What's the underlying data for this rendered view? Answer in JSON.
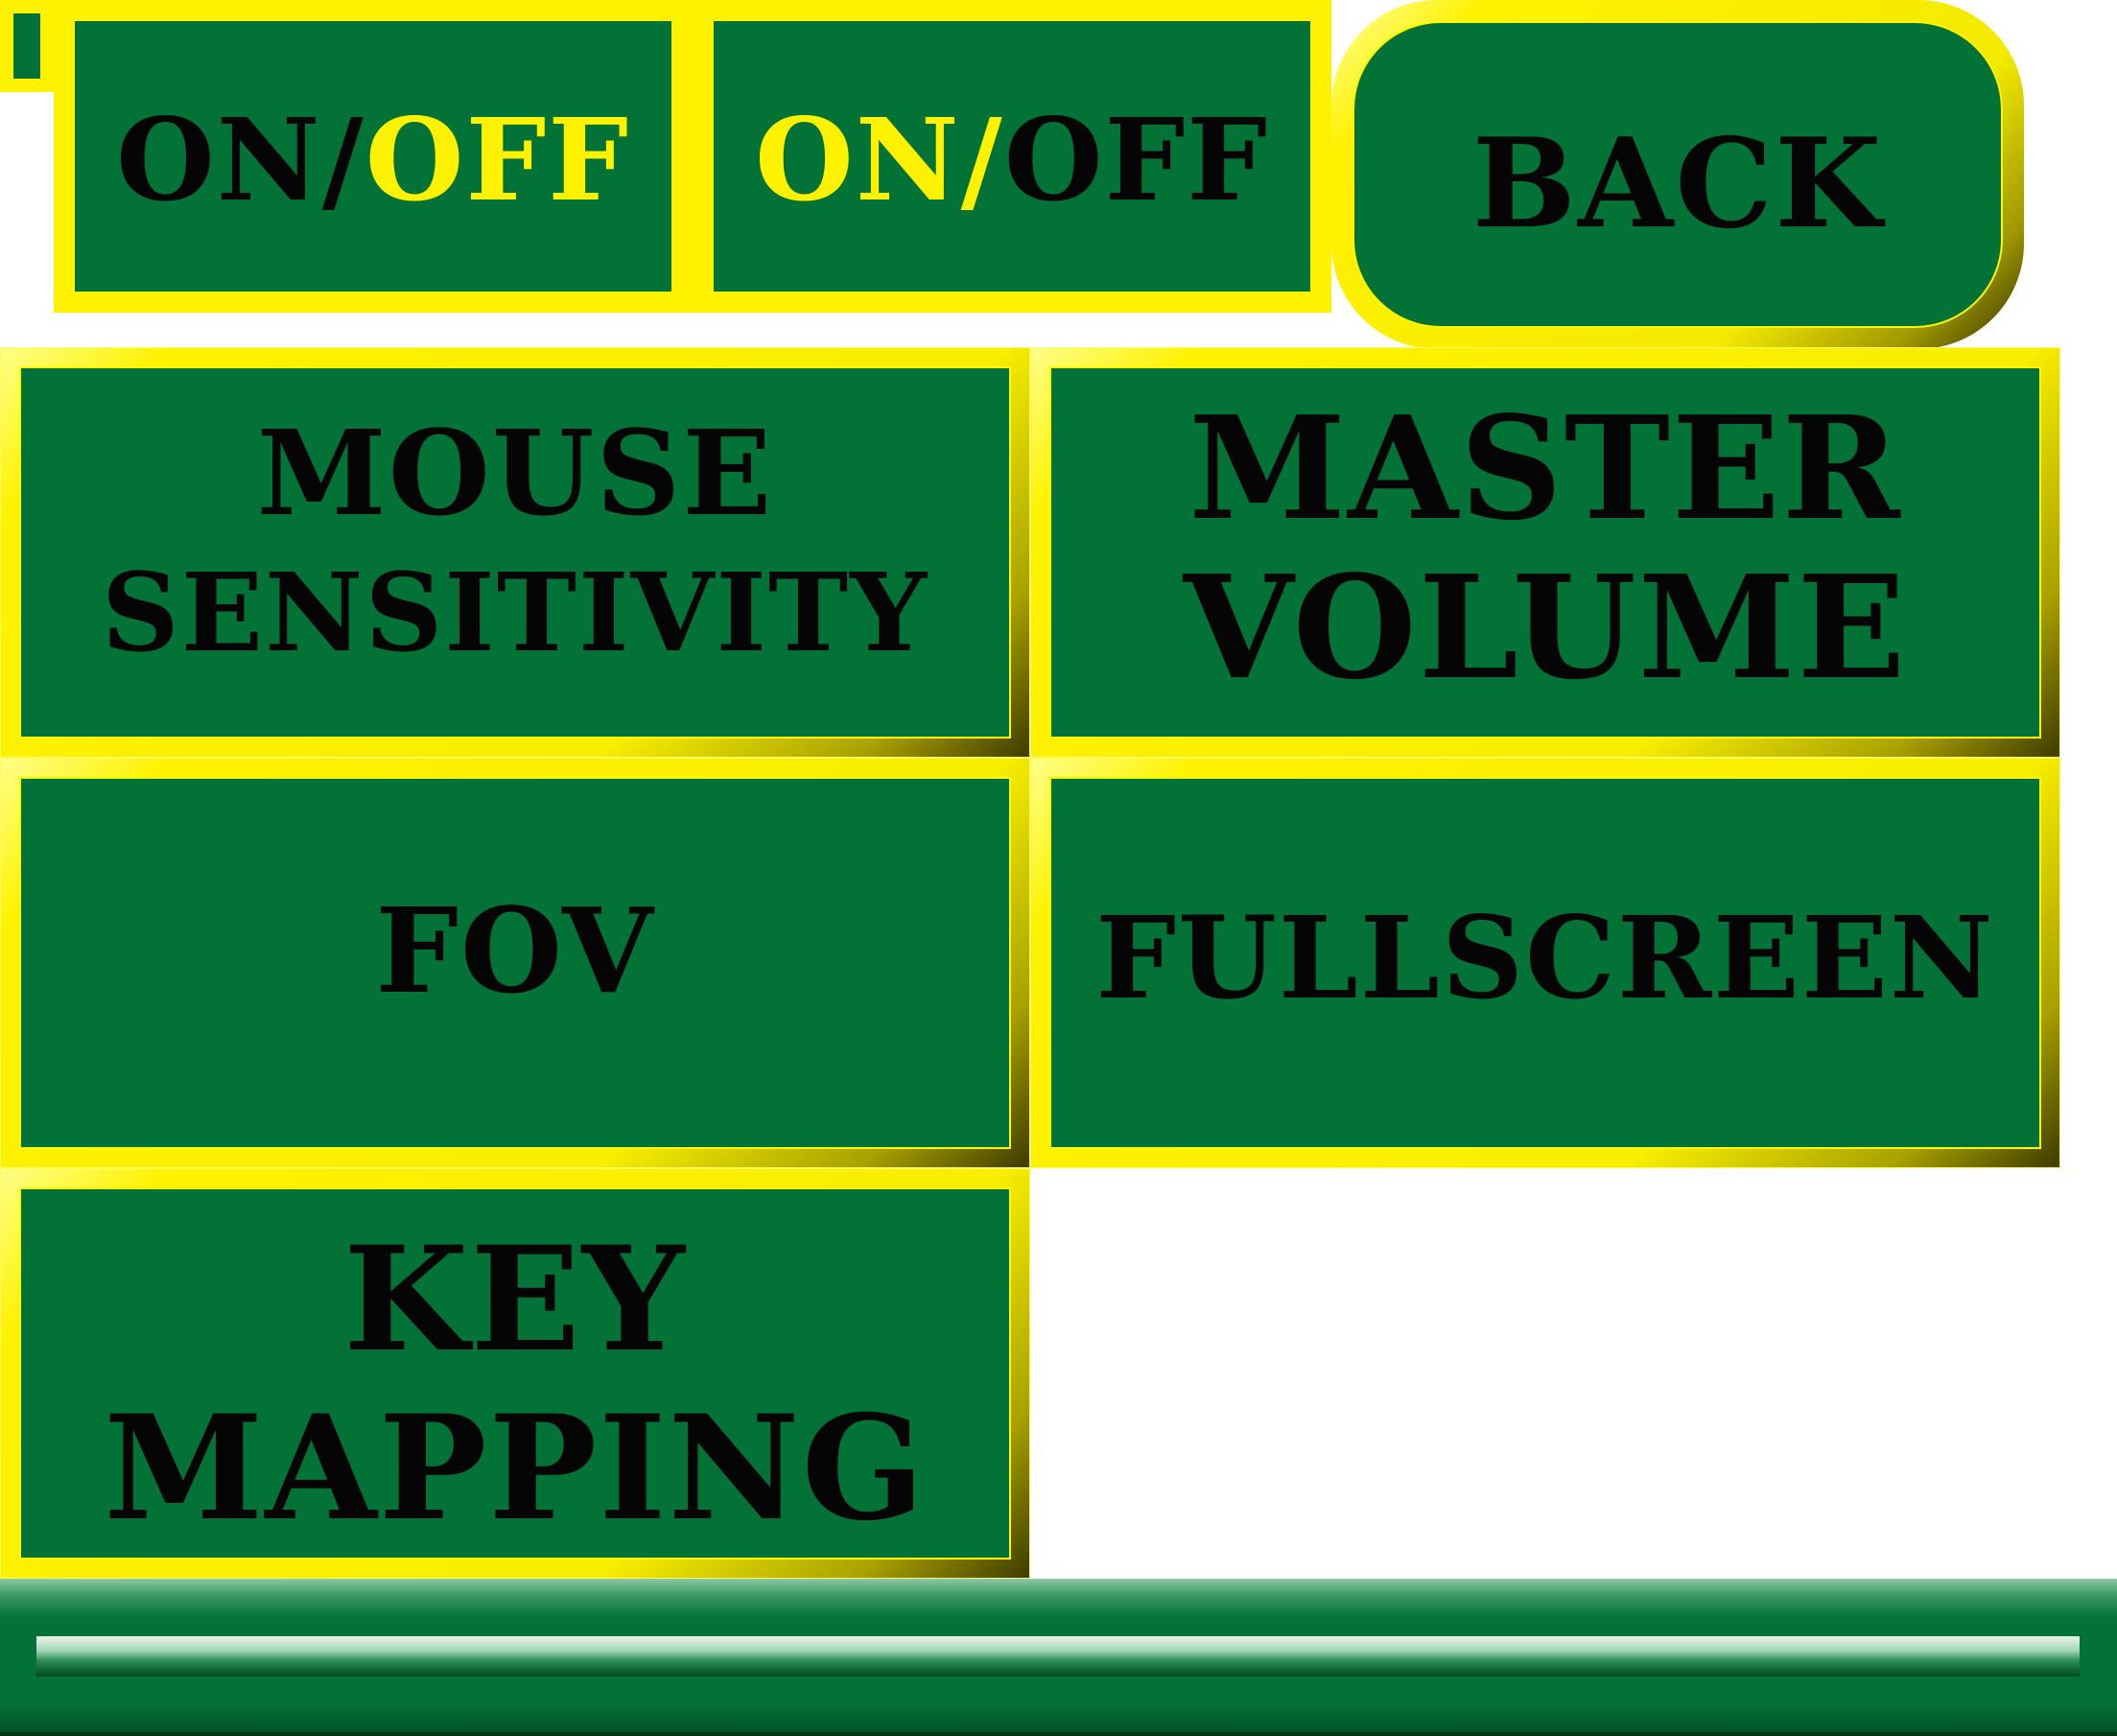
{
  "toggles": [
    {
      "label_first": "ON/",
      "label_second": "OFF"
    },
    {
      "label_first": "ON/",
      "label_second": "OFF"
    }
  ],
  "back_button": {
    "label": "BACK"
  },
  "settings": {
    "mouse_sensitivity": {
      "line1": "MOUSE",
      "line2": "SENSITIVITY"
    },
    "master_volume": {
      "line1": "MASTER",
      "line2": "VOLUME"
    },
    "fov": {
      "label": "FOV"
    },
    "fullscreen": {
      "label": "FULLSCREEN"
    },
    "key_mapping": {
      "line1": "KEY",
      "line2": "MAPPING"
    }
  },
  "colors": {
    "button_face": "#037237",
    "button_frame": "#fff200",
    "label_text": "#050505",
    "toggle_on_text": "#fff200"
  }
}
